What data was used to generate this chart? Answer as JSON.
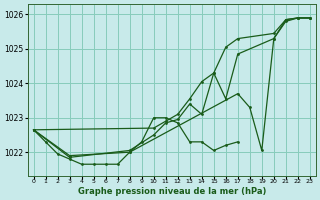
{
  "title": "Graphe pression niveau de la mer (hPa)",
  "bg_color": "#c8eaea",
  "grid_color": "#88ccbb",
  "line_color": "#1a5c1a",
  "marker_color": "#1a5c1a",
  "xlim": [
    -0.5,
    23.5
  ],
  "ylim": [
    1021.3,
    1026.3
  ],
  "xtick_labels": [
    "0",
    "1",
    "2",
    "3",
    "4",
    "5",
    "6",
    "7",
    "8",
    "9",
    "10",
    "11",
    "12",
    "13",
    "14",
    "15",
    "16",
    "17",
    "18",
    "19",
    "20",
    "21",
    "22",
    "23"
  ],
  "yticks": [
    1022,
    1023,
    1024,
    1025,
    1026
  ],
  "series": [
    {
      "x": [
        0,
        1,
        2,
        3,
        4,
        5,
        6,
        7,
        8,
        9,
        10,
        11,
        12,
        13,
        14,
        15,
        16,
        17
      ],
      "y": [
        1022.65,
        1022.3,
        1021.95,
        1021.8,
        1021.65,
        1021.65,
        1021.65,
        1021.65,
        1022.0,
        1022.3,
        1023.0,
        1023.0,
        1022.85,
        1022.3,
        1022.3,
        1022.05,
        1022.2,
        1022.3
      ],
      "markers": true
    },
    {
      "x": [
        0,
        3,
        8,
        17,
        18,
        19,
        20,
        21,
        22,
        23
      ],
      "y": [
        1022.65,
        1021.9,
        1022.0,
        1023.7,
        1023.3,
        1022.05,
        1025.3,
        1025.8,
        1025.9,
        1025.9
      ],
      "markers": true
    },
    {
      "x": [
        0,
        3,
        8,
        10,
        11,
        12,
        13,
        14,
        15,
        16,
        17,
        20,
        21,
        22,
        23
      ],
      "y": [
        1022.65,
        1021.85,
        1022.05,
        1022.5,
        1022.85,
        1022.95,
        1023.4,
        1023.1,
        1024.3,
        1023.55,
        1024.85,
        1025.3,
        1025.85,
        1025.9,
        1025.9
      ],
      "markers": true
    },
    {
      "x": [
        0,
        10,
        11,
        12,
        13,
        14,
        15,
        16,
        17,
        20,
        21,
        22,
        23
      ],
      "y": [
        1022.65,
        1022.7,
        1022.9,
        1023.1,
        1023.55,
        1024.05,
        1024.3,
        1025.05,
        1025.3,
        1025.45,
        1025.85,
        1025.9,
        1025.9
      ],
      "markers": true
    }
  ]
}
